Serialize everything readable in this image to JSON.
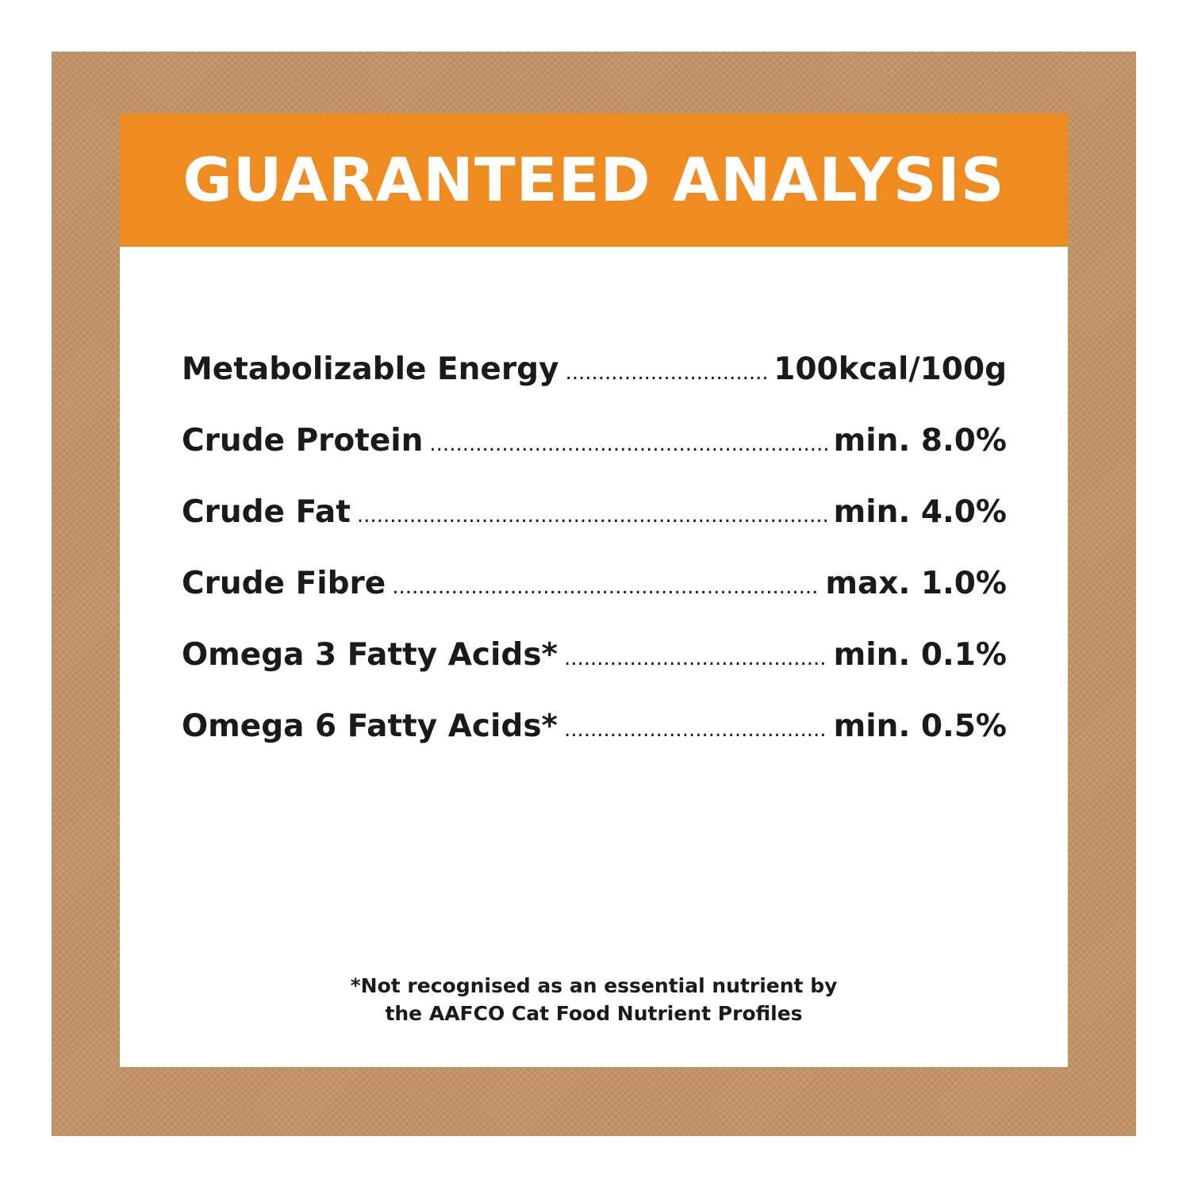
{
  "header": {
    "title": "GUARANTEED ANALYSIS"
  },
  "table": {
    "rows": [
      [
        "Metabolizable Energy",
        "100kcal/100g"
      ],
      [
        "Crude Protein",
        "min. 8.0%"
      ],
      [
        "Crude Fat",
        "min. 4.0%"
      ],
      [
        "Crude Fibre",
        "max. 1.0%"
      ],
      [
        "Omega 3 Fatty Acids*",
        "min. 0.1%"
      ],
      [
        "Omega 6 Fatty Acids*",
        "min. 0.5%"
      ]
    ]
  },
  "footnote": {
    "lines": [
      "*Not recognised as an essential nutrient by",
      "the AAFCO Cat Food Nutrient Profiles"
    ]
  }
}
